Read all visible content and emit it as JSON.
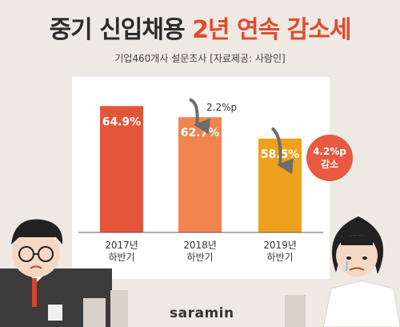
{
  "title": {
    "part1": "중기 신입채용 ",
    "part2": "2년 연속 감소세"
  },
  "subtitle": "기업460개사 설문조사  [자료제공: 사람인]",
  "logo": "saramin",
  "callout": {
    "line1": "4.2%p",
    "line2": "감소"
  },
  "colors": {
    "accent": "#e04b2c",
    "bar_2017": "#e2553a",
    "bar_2018": "#f2844f",
    "bar_2019": "#eea11c"
  },
  "chart_data": {
    "type": "bar",
    "title": "중기 신입채용 2년 연속 감소세",
    "categories": [
      "2017년 하반기",
      "2018년 하반기",
      "2019년 하반기"
    ],
    "category_lines": [
      [
        "2017년",
        "하반기"
      ],
      [
        "2018년",
        "하반기"
      ],
      [
        "2019년",
        "하반기"
      ]
    ],
    "values": [
      64.9,
      62.7,
      58.5
    ],
    "value_labels": [
      "64.9%",
      "62.7%",
      "58.5%"
    ],
    "annotations": [
      {
        "text": "2.2%p",
        "from": "2017년 하반기",
        "to": "2018년 하반기"
      },
      {
        "text": "4.2%p 감소",
        "from": "2018년 하반기",
        "to": "2019년 하반기"
      }
    ],
    "ylim": [
      0,
      70
    ],
    "grid": false,
    "legend": "none"
  }
}
